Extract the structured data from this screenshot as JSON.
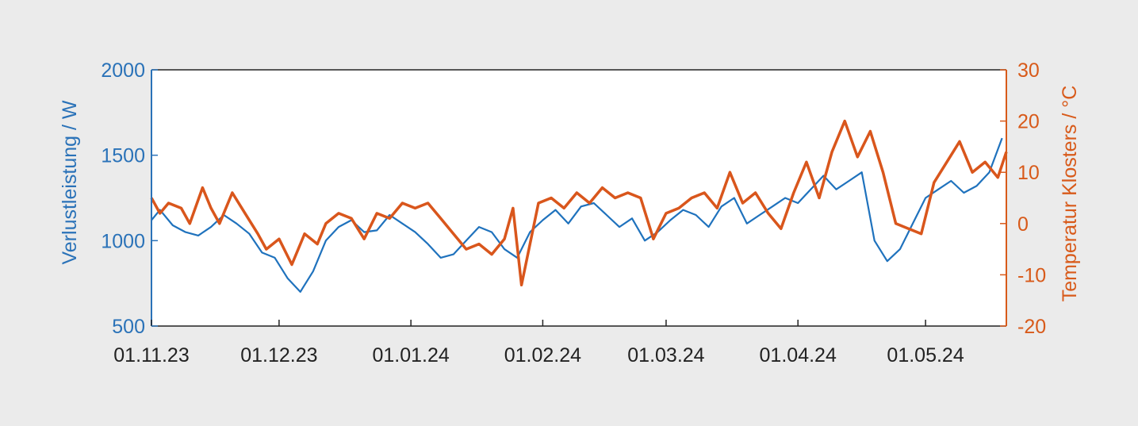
{
  "chart_data": {
    "type": "line",
    "ylabel_left": "Verlustleistung / W",
    "ylabel_right": "Temperatur Klosters / °C",
    "x_ticks": [
      "01.11.23",
      "01.12.23",
      "01.01.24",
      "01.02.24",
      "01.03.24",
      "01.04.24",
      "01.05.24"
    ],
    "x_range": [
      "01.11.23",
      "20.05.24"
    ],
    "y_left_ticks": [
      "500",
      "1000",
      "1500",
      "2000"
    ],
    "y_left_range": [
      500,
      2000
    ],
    "y_right_ticks": [
      "-20",
      "-10",
      "0",
      "10",
      "20",
      "30"
    ],
    "y_right_range": [
      -20,
      30
    ],
    "grid": false,
    "colors": {
      "left": "#1f72bd",
      "right": "#d9561c",
      "left_axis": "#2a72b8",
      "right_axis": "#d85a1a",
      "frame": "#222222"
    },
    "series": [
      {
        "axis": "left",
        "color": "#1f72bd",
        "points": [
          [
            "01.11.23",
            1120
          ],
          [
            "03.11.23",
            1180
          ],
          [
            "06.11.23",
            1090
          ],
          [
            "09.11.23",
            1050
          ],
          [
            "12.11.23",
            1030
          ],
          [
            "15.11.23",
            1080
          ],
          [
            "18.11.23",
            1150
          ],
          [
            "21.11.23",
            1100
          ],
          [
            "24.11.23",
            1040
          ],
          [
            "27.11.23",
            930
          ],
          [
            "30.11.23",
            900
          ],
          [
            "03.12.23",
            780
          ],
          [
            "06.12.23",
            700
          ],
          [
            "09.12.23",
            820
          ],
          [
            "12.12.23",
            1000
          ],
          [
            "15.12.23",
            1080
          ],
          [
            "18.12.23",
            1120
          ],
          [
            "21.12.23",
            1050
          ],
          [
            "24.12.23",
            1060
          ],
          [
            "27.12.23",
            1150
          ],
          [
            "30.12.23",
            1100
          ],
          [
            "02.01.24",
            1050
          ],
          [
            "05.01.24",
            980
          ],
          [
            "08.01.24",
            900
          ],
          [
            "11.01.24",
            920
          ],
          [
            "14.01.24",
            1000
          ],
          [
            "17.01.24",
            1080
          ],
          [
            "20.01.24",
            1050
          ],
          [
            "23.01.24",
            950
          ],
          [
            "26.01.24",
            900
          ],
          [
            "29.01.24",
            1050
          ],
          [
            "01.02.24",
            1120
          ],
          [
            "04.02.24",
            1180
          ],
          [
            "07.02.24",
            1100
          ],
          [
            "10.02.24",
            1200
          ],
          [
            "13.02.24",
            1220
          ],
          [
            "16.02.24",
            1150
          ],
          [
            "19.02.24",
            1080
          ],
          [
            "22.02.24",
            1130
          ],
          [
            "25.02.24",
            1000
          ],
          [
            "28.02.24",
            1050
          ],
          [
            "02.03.24",
            1120
          ],
          [
            "05.03.24",
            1180
          ],
          [
            "08.03.24",
            1150
          ],
          [
            "11.03.24",
            1080
          ],
          [
            "14.03.24",
            1200
          ],
          [
            "17.03.24",
            1250
          ],
          [
            "20.03.24",
            1100
          ],
          [
            "23.03.24",
            1150
          ],
          [
            "26.03.24",
            1200
          ],
          [
            "29.03.24",
            1250
          ],
          [
            "01.04.24",
            1220
          ],
          [
            "04.04.24",
            1300
          ],
          [
            "07.04.24",
            1380
          ],
          [
            "10.04.24",
            1300
          ],
          [
            "13.04.24",
            1350
          ],
          [
            "16.04.24",
            1400
          ],
          [
            "19.04.24",
            1000
          ],
          [
            "22.04.24",
            880
          ],
          [
            "25.04.24",
            950
          ],
          [
            "28.04.24",
            1100
          ],
          [
            "01.05.24",
            1250
          ],
          [
            "04.05.24",
            1300
          ],
          [
            "07.05.24",
            1350
          ],
          [
            "10.05.24",
            1280
          ],
          [
            "13.05.24",
            1320
          ],
          [
            "16.05.24",
            1400
          ],
          [
            "19.05.24",
            1600
          ]
        ]
      },
      {
        "axis": "right",
        "color": "#d9561c",
        "points": [
          [
            "01.11.23",
            5
          ],
          [
            "03.11.23",
            2
          ],
          [
            "05.11.23",
            4
          ],
          [
            "08.11.23",
            3
          ],
          [
            "10.11.23",
            0
          ],
          [
            "13.11.23",
            7
          ],
          [
            "15.11.23",
            3
          ],
          [
            "17.11.23",
            0
          ],
          [
            "20.11.23",
            6
          ],
          [
            "23.11.23",
            2
          ],
          [
            "26.11.23",
            -2
          ],
          [
            "28.11.23",
            -5
          ],
          [
            "01.12.23",
            -3
          ],
          [
            "04.12.23",
            -8
          ],
          [
            "07.12.23",
            -2
          ],
          [
            "10.12.23",
            -4
          ],
          [
            "12.12.23",
            0
          ],
          [
            "15.12.23",
            2
          ],
          [
            "18.12.23",
            1
          ],
          [
            "21.12.23",
            -3
          ],
          [
            "24.12.23",
            2
          ],
          [
            "27.12.23",
            1
          ],
          [
            "30.12.23",
            4
          ],
          [
            "02.01.24",
            3
          ],
          [
            "05.01.24",
            4
          ],
          [
            "08.01.24",
            1
          ],
          [
            "11.01.24",
            -2
          ],
          [
            "14.01.24",
            -5
          ],
          [
            "17.01.24",
            -4
          ],
          [
            "20.01.24",
            -6
          ],
          [
            "23.01.24",
            -3
          ],
          [
            "25.01.24",
            3
          ],
          [
            "27.01.24",
            -12
          ],
          [
            "29.01.24",
            -4
          ],
          [
            "31.01.24",
            4
          ],
          [
            "03.02.24",
            5
          ],
          [
            "06.02.24",
            3
          ],
          [
            "09.02.24",
            6
          ],
          [
            "12.02.24",
            4
          ],
          [
            "15.02.24",
            7
          ],
          [
            "18.02.24",
            5
          ],
          [
            "21.02.24",
            6
          ],
          [
            "24.02.24",
            5
          ],
          [
            "27.02.24",
            -3
          ],
          [
            "01.03.24",
            2
          ],
          [
            "04.03.24",
            3
          ],
          [
            "07.03.24",
            5
          ],
          [
            "10.03.24",
            6
          ],
          [
            "13.03.24",
            3
          ],
          [
            "16.03.24",
            10
          ],
          [
            "19.03.24",
            4
          ],
          [
            "22.03.24",
            6
          ],
          [
            "25.03.24",
            2
          ],
          [
            "28.03.24",
            -1
          ],
          [
            "31.03.24",
            6
          ],
          [
            "03.04.24",
            12
          ],
          [
            "06.04.24",
            5
          ],
          [
            "09.04.24",
            14
          ],
          [
            "12.04.24",
            20
          ],
          [
            "15.04.24",
            13
          ],
          [
            "18.04.24",
            18
          ],
          [
            "21.04.24",
            10
          ],
          [
            "24.04.24",
            0
          ],
          [
            "27.04.24",
            -1
          ],
          [
            "30.04.24",
            -2
          ],
          [
            "03.05.24",
            8
          ],
          [
            "06.05.24",
            12
          ],
          [
            "09.05.24",
            16
          ],
          [
            "12.05.24",
            10
          ],
          [
            "15.05.24",
            12
          ],
          [
            "18.05.24",
            9
          ],
          [
            "20.05.24",
            14
          ]
        ]
      }
    ]
  }
}
